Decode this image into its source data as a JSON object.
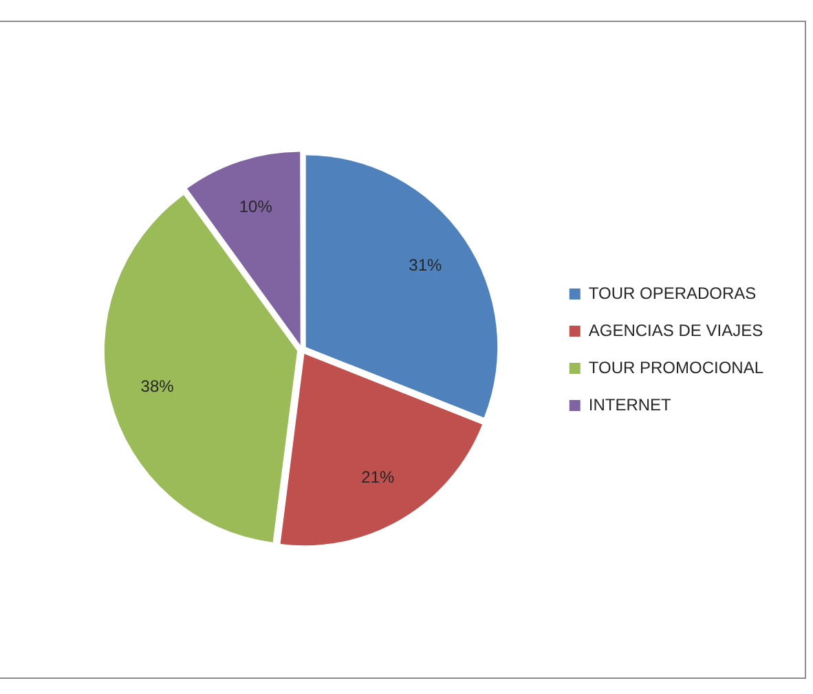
{
  "chart_data": {
    "type": "pie",
    "categories": [
      "TOUR OPERADORAS",
      "AGENCIAS DE VIAJES",
      "TOUR PROMOCIONAL",
      "INTERNET"
    ],
    "values": [
      31,
      21,
      38,
      10
    ],
    "colors": [
      "#4f81bd",
      "#c0504d",
      "#9bbb59",
      "#8064a2"
    ],
    "value_labels": [
      "31%",
      "21%",
      "38%",
      "10%"
    ],
    "legend": "right"
  }
}
